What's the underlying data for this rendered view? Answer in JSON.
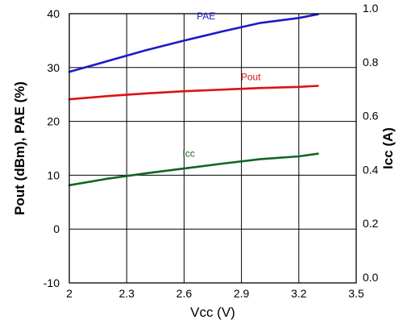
{
  "chart_data": {
    "type": "line",
    "title": "",
    "xlabel": "Vcc (V)",
    "ylabel": "Pout (dBm), PAE (%)",
    "y2label": "Icc (A)",
    "xlim": [
      2,
      3.5
    ],
    "ylim": [
      -10,
      40
    ],
    "y2lim": [
      0.0,
      1.0
    ],
    "grid": true,
    "x_ticks": [
      2,
      2.3,
      2.6,
      2.9,
      3.2,
      3.5
    ],
    "x_tick_labels": [
      "2",
      "2.3",
      "2.6",
      "2.9",
      "3.2",
      "3.5"
    ],
    "y_ticks": [
      -10,
      0,
      10,
      20,
      30,
      40
    ],
    "y_tick_labels": [
      "-10",
      "0",
      "10",
      "20",
      "30",
      "40"
    ],
    "y2_ticks": [
      0.0,
      0.2,
      0.4,
      0.6,
      0.8,
      1.0
    ],
    "y2_tick_labels": [
      "0.0",
      "0.2",
      "0.4",
      "0.6",
      "0.8",
      "1.0"
    ],
    "series": [
      {
        "name": "PAE",
        "axis": "left",
        "color": "#1a1acc",
        "x": [
          2.0,
          2.2,
          2.4,
          2.6,
          2.8,
          3.0,
          3.2,
          3.3
        ],
        "y": [
          29.2,
          31.2,
          33.2,
          35.0,
          36.7,
          38.3,
          39.2,
          39.9
        ]
      },
      {
        "name": "Pout",
        "axis": "left",
        "color": "#dd1111",
        "x": [
          2.0,
          2.2,
          2.4,
          2.6,
          2.8,
          3.0,
          3.2,
          3.3
        ],
        "y": [
          24.1,
          24.7,
          25.2,
          25.6,
          25.9,
          26.2,
          26.4,
          26.6
        ]
      },
      {
        "name": "Icc",
        "axis": "right",
        "color": "#116622",
        "x": [
          2.0,
          2.2,
          2.4,
          2.6,
          2.8,
          3.0,
          3.2,
          3.3
        ],
        "y": [
          0.363,
          0.387,
          0.407,
          0.425,
          0.443,
          0.46,
          0.47,
          0.48
        ]
      }
    ]
  }
}
